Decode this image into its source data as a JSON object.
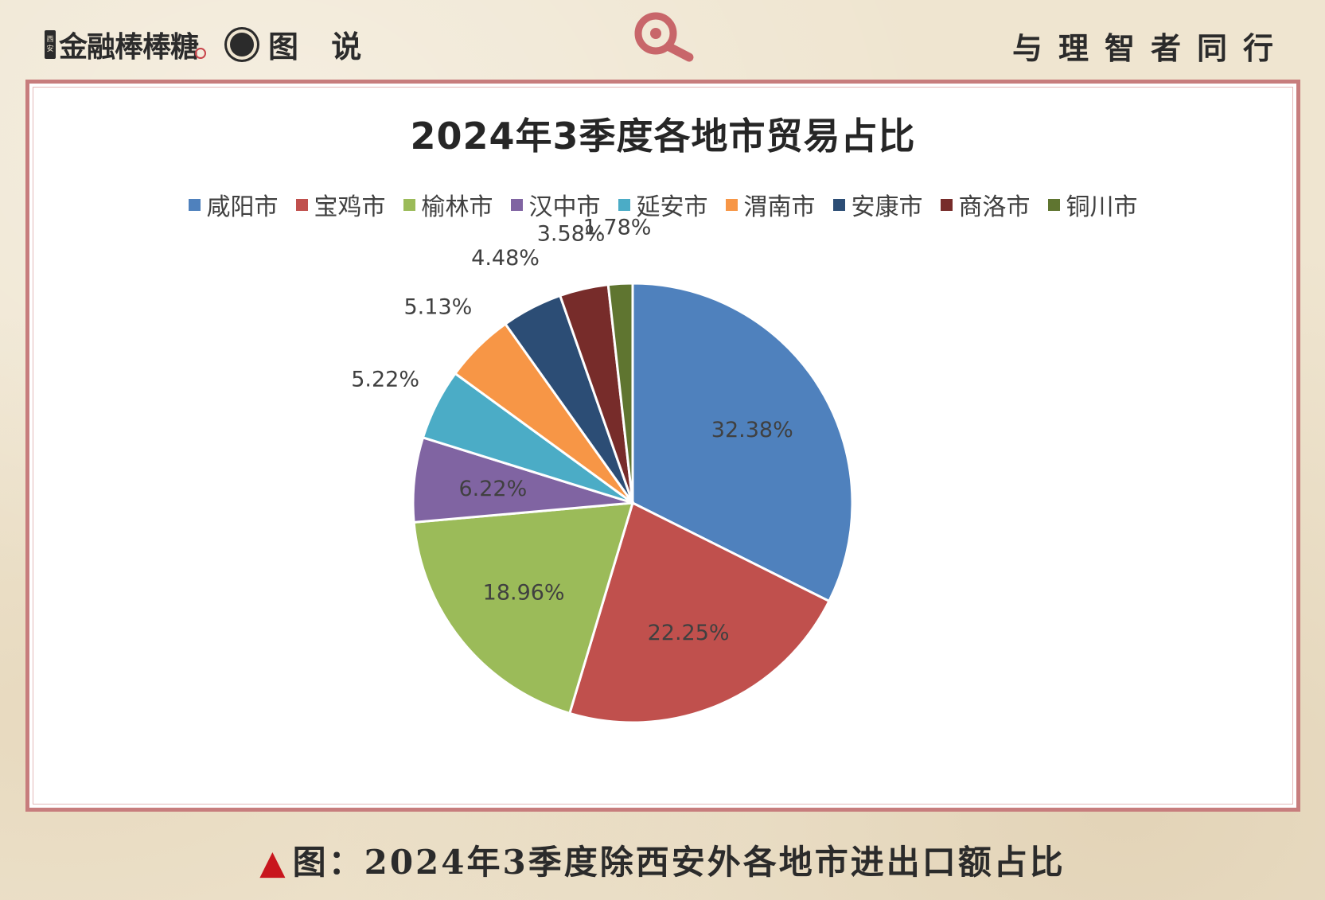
{
  "header": {
    "brand_badge": [
      "西",
      "安"
    ],
    "brand_name": "金融棒棒糖",
    "section": "图 说",
    "slogan": "与理智者同行"
  },
  "colors": {
    "frame_border": "#c77d7d",
    "caption_triangle": "#c8161d",
    "logo_red": "#c8666a"
  },
  "icons": {
    "brand": "brand-badge-icon",
    "dot": "record-dot-icon",
    "logo": "magnifier-logo-icon",
    "caption_marker": "triangle-up-icon"
  },
  "caption": {
    "marker": "▲",
    "text": "图：2024年3季度除西安外各地市进出口额占比"
  },
  "chart_data": {
    "type": "pie",
    "title": "2024年3季度各地市贸易占比",
    "legend_position": "top",
    "slices": [
      {
        "label": "咸阳市",
        "value": 32.38,
        "display": "32.38%",
        "color": "#4f81bd"
      },
      {
        "label": "宝鸡市",
        "value": 22.25,
        "display": "22.25%",
        "color": "#c0504d"
      },
      {
        "label": "榆林市",
        "value": 18.96,
        "display": "18.96%",
        "color": "#9bbb59"
      },
      {
        "label": "汉中市",
        "value": 6.22,
        "display": "6.22%",
        "color": "#8064a2"
      },
      {
        "label": "延安市",
        "value": 5.22,
        "display": "5.22%",
        "color": "#4bacc6"
      },
      {
        "label": "渭南市",
        "value": 5.13,
        "display": "5.13%",
        "color": "#f79646"
      },
      {
        "label": "安康市",
        "value": 4.48,
        "display": "4.48%",
        "color": "#2c4d75"
      },
      {
        "label": "商洛市",
        "value": 3.58,
        "display": "3.58%",
        "color": "#772c2a"
      },
      {
        "label": "铜川市",
        "value": 1.78,
        "display": "1.78%",
        "color": "#5f7530"
      }
    ]
  }
}
